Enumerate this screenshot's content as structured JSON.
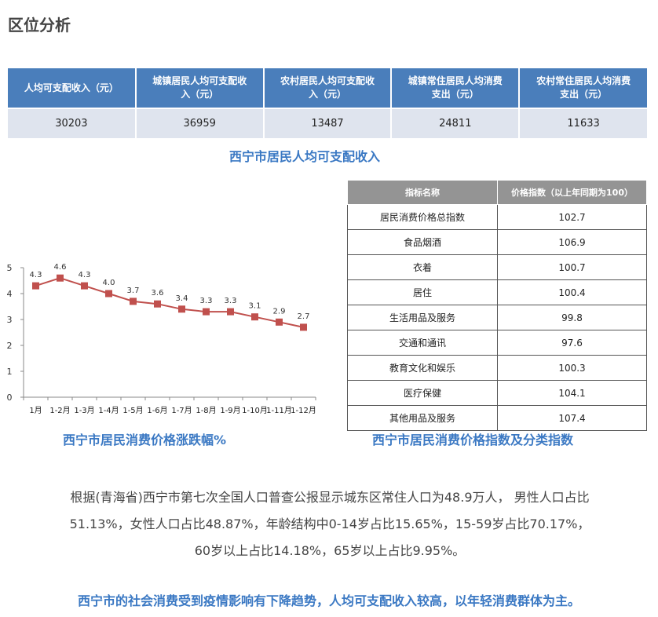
{
  "page_title": "区位分析",
  "income_table": {
    "headers": [
      [
        "人均可支配收入（元）"
      ],
      [
        "城镇居民人均可支配收",
        "入（元）"
      ],
      [
        "农村居民人均可支配收",
        "入（元）"
      ],
      [
        "城镇常住居民人均消费",
        "支出（元）"
      ],
      [
        "农村常住居民人均消费",
        "支出（元）"
      ]
    ],
    "values": [
      "30203",
      "36959",
      "13487",
      "24811",
      "11633"
    ],
    "caption": "西宁市居民人均可支配收入"
  },
  "chart_data": {
    "type": "line",
    "categories": [
      "1月",
      "1-2月",
      "1-3月",
      "1-4月",
      "1-5月",
      "1-6月",
      "1-7月",
      "1-8月",
      "1-9月",
      "1-10月",
      "1-11月",
      "1-12月"
    ],
    "values": [
      4.3,
      4.6,
      4.3,
      4.0,
      3.7,
      3.6,
      3.4,
      3.3,
      3.3,
      3.1,
      2.9,
      2.7
    ],
    "data_labels": [
      "4.3",
      "4.6",
      "4.3",
      "4.0",
      "3.7",
      "3.6",
      "3.4",
      "3.3",
      "3.3",
      "3.1",
      "2.9",
      "2.7"
    ],
    "y_ticks": [
      "0",
      "1",
      "2",
      "3",
      "4",
      "5"
    ],
    "ylim": [
      0,
      5
    ],
    "grid": false,
    "color": "#c0504d",
    "title": "西宁市居民消费价格涨跌幅%"
  },
  "price_table": {
    "headers": [
      "指标名称",
      "价格指数（以上年同期为100）"
    ],
    "rows": [
      [
        "居民消费价格总指数",
        "102.7"
      ],
      [
        "食品烟酒",
        "106.9"
      ],
      [
        "衣着",
        "100.7"
      ],
      [
        "居住",
        "100.4"
      ],
      [
        "生活用品及服务",
        "99.8"
      ],
      [
        "交通和通讯",
        "97.6"
      ],
      [
        "教育文化和娱乐",
        "100.3"
      ],
      [
        "医疗保健",
        "104.1"
      ],
      [
        "其他用品及服务",
        "107.4"
      ]
    ],
    "caption": "西宁市居民消费价格指数及分类指数"
  },
  "body_lines": [
    "根据(青海省)西宁市第七次全国人口普查公报显示城东区常住人口为48.9万人， 男性人口占比",
    "51.13%，女性人口占比48.87%，年龄结构中0-14岁占比15.65%，15-59岁占比70.17%，",
    "60岁以上占比14.18%，65岁以上占比9.95%。"
  ],
  "conclusion": "西宁市的社会消费受到疫情影响有下降趋势，人均可支配收入较高，以年轻消费群体为主。"
}
